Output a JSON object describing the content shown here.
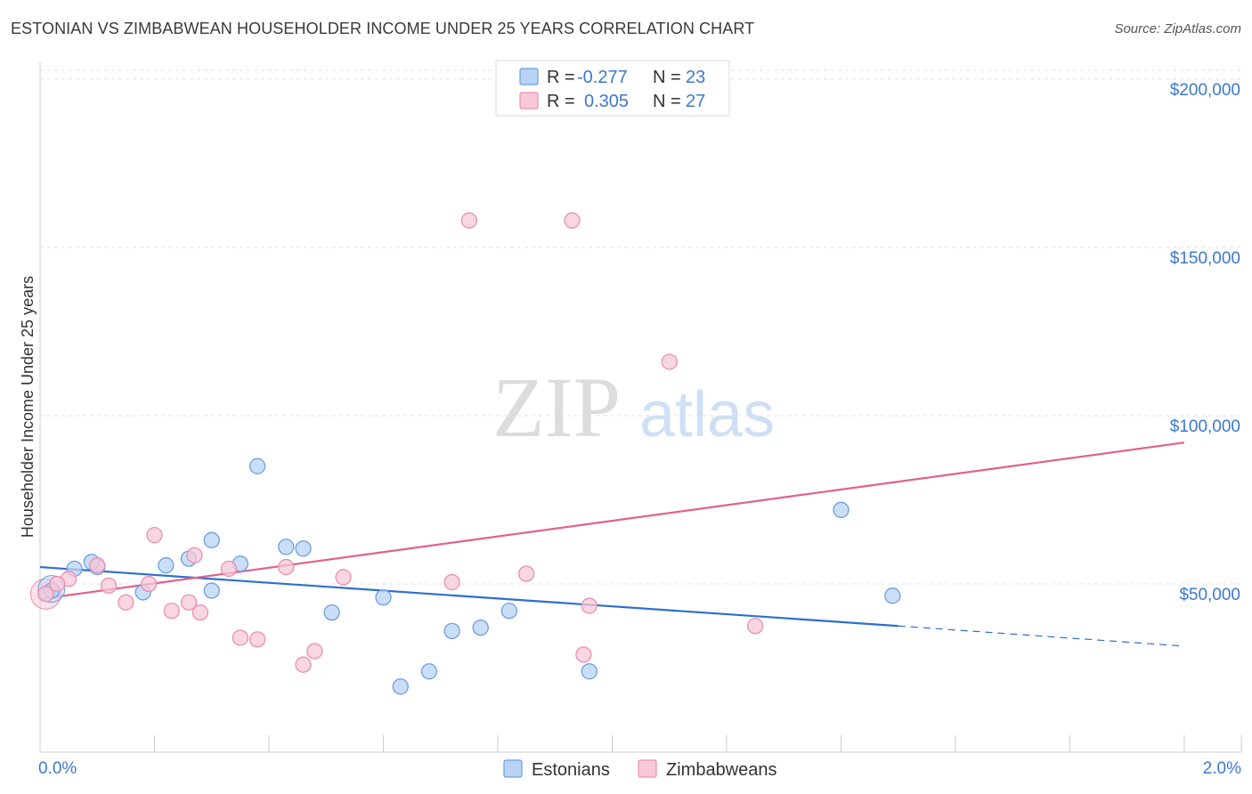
{
  "title": "ESTONIAN VS ZIMBABWEAN HOUSEHOLDER INCOME UNDER 25 YEARS CORRELATION CHART",
  "source": "Source: ZipAtlas.com",
  "watermark": {
    "zip": "ZIP",
    "atlas": "atlas"
  },
  "colors": {
    "blue": "#6a9fe0",
    "blue_fill": "#b9d3f5",
    "blue_line": "#2b6fd0",
    "pink": "#ea8fb0",
    "pink_fill": "#f8c8d8",
    "pink_line": "#e0628f",
    "axis_text_blue": "#3b78d0"
  },
  "legend_stats": [
    {
      "series": "Estonians",
      "r_label": "R =",
      "r_value": "-0.277",
      "n_label": "N =",
      "n_value": "23"
    },
    {
      "series": "Zimbabweans",
      "r_label": "R =",
      "r_value": "0.305",
      "n_label": "N =",
      "n_value": "27"
    }
  ],
  "chart_data": {
    "type": "scatter",
    "title": "ESTONIAN VS ZIMBABWEAN HOUSEHOLDER INCOME UNDER 25 YEARS CORRELATION CHART",
    "xlabel": "",
    "ylabel": "Householder Income Under 25 years",
    "xlim": [
      0,
      2.0
    ],
    "ylim": [
      0,
      205000
    ],
    "x_tick_labels": [
      "0.0%",
      "2.0%"
    ],
    "y_ticks": [
      50000,
      100000,
      150000,
      200000
    ],
    "y_tick_labels": [
      "$50,000",
      "$100,000",
      "$150,000",
      "$200,000"
    ],
    "grid": true,
    "legend_position": "bottom-center",
    "series": [
      {
        "name": "Estonians",
        "x": [
          0.02,
          0.1,
          0.18,
          0.22,
          0.26,
          0.3,
          0.35,
          0.38,
          0.43,
          0.46,
          0.51,
          0.6,
          0.63,
          0.68,
          0.72,
          0.77,
          0.82,
          0.96,
          1.4,
          1.49,
          0.09,
          0.06,
          0.3
        ],
        "y": [
          48000,
          55000,
          47500,
          55500,
          57500,
          63000,
          56000,
          85000,
          61000,
          60500,
          41500,
          46000,
          19500,
          24000,
          36000,
          37000,
          42000,
          24000,
          72000,
          46500,
          56500,
          54500,
          48000
        ],
        "trend": {
          "x0": 0.0,
          "y0": 55000,
          "x1": 1.5,
          "y1": 37500,
          "dash_x1": 2.0,
          "dash_y1": 31500
        }
      },
      {
        "name": "Zimbabweans",
        "x": [
          0.01,
          0.05,
          0.1,
          0.12,
          0.15,
          0.2,
          0.23,
          0.28,
          0.33,
          0.35,
          0.38,
          0.43,
          0.46,
          0.48,
          0.53,
          0.72,
          0.75,
          0.85,
          0.93,
          0.95,
          0.96,
          1.1,
          1.25,
          0.27,
          0.26,
          0.19,
          0.03
        ],
        "y": [
          47000,
          51500,
          55500,
          49500,
          44500,
          64500,
          42000,
          41500,
          54500,
          34000,
          33500,
          55000,
          26000,
          30000,
          52000,
          50500,
          158000,
          53000,
          158000,
          29000,
          43500,
          116000,
          37500,
          58500,
          44500,
          50000,
          50000
        ],
        "trend": {
          "x0": 0.0,
          "y0": 45500,
          "x1": 2.0,
          "y1": 92000
        }
      }
    ]
  }
}
